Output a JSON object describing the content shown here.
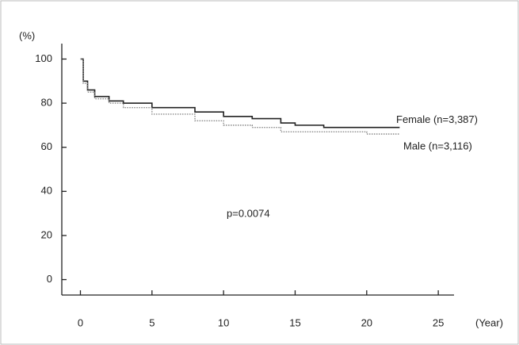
{
  "chart_data": {
    "type": "step",
    "x_label": "(Year)",
    "y_label": "(%)",
    "annotation": "p=0.0074",
    "x": [
      0,
      0.2,
      0.5,
      1,
      2,
      3,
      5,
      8,
      10,
      12,
      14,
      15,
      17,
      20,
      22.3
    ],
    "series": [
      {
        "name": "Female (n=3,387)",
        "color": "#222222",
        "style": "solid",
        "values": [
          100,
          90,
          86,
          83,
          81,
          80,
          78,
          76,
          74,
          73,
          71,
          70,
          69,
          69,
          69
        ]
      },
      {
        "name": "Male (n=3,116)",
        "color": "#888888",
        "style": "dotted",
        "values": [
          100,
          89,
          85,
          82,
          80,
          78,
          75,
          72,
          70,
          69,
          67,
          67,
          67,
          66,
          66
        ]
      }
    ],
    "xlim": [
      -1.3,
      26.1
    ],
    "ylim": [
      -7,
      107
    ],
    "xticks": [
      0,
      5,
      10,
      15,
      20,
      25
    ],
    "yticks": [
      0,
      20,
      40,
      60,
      80,
      100
    ],
    "grid": false
  }
}
